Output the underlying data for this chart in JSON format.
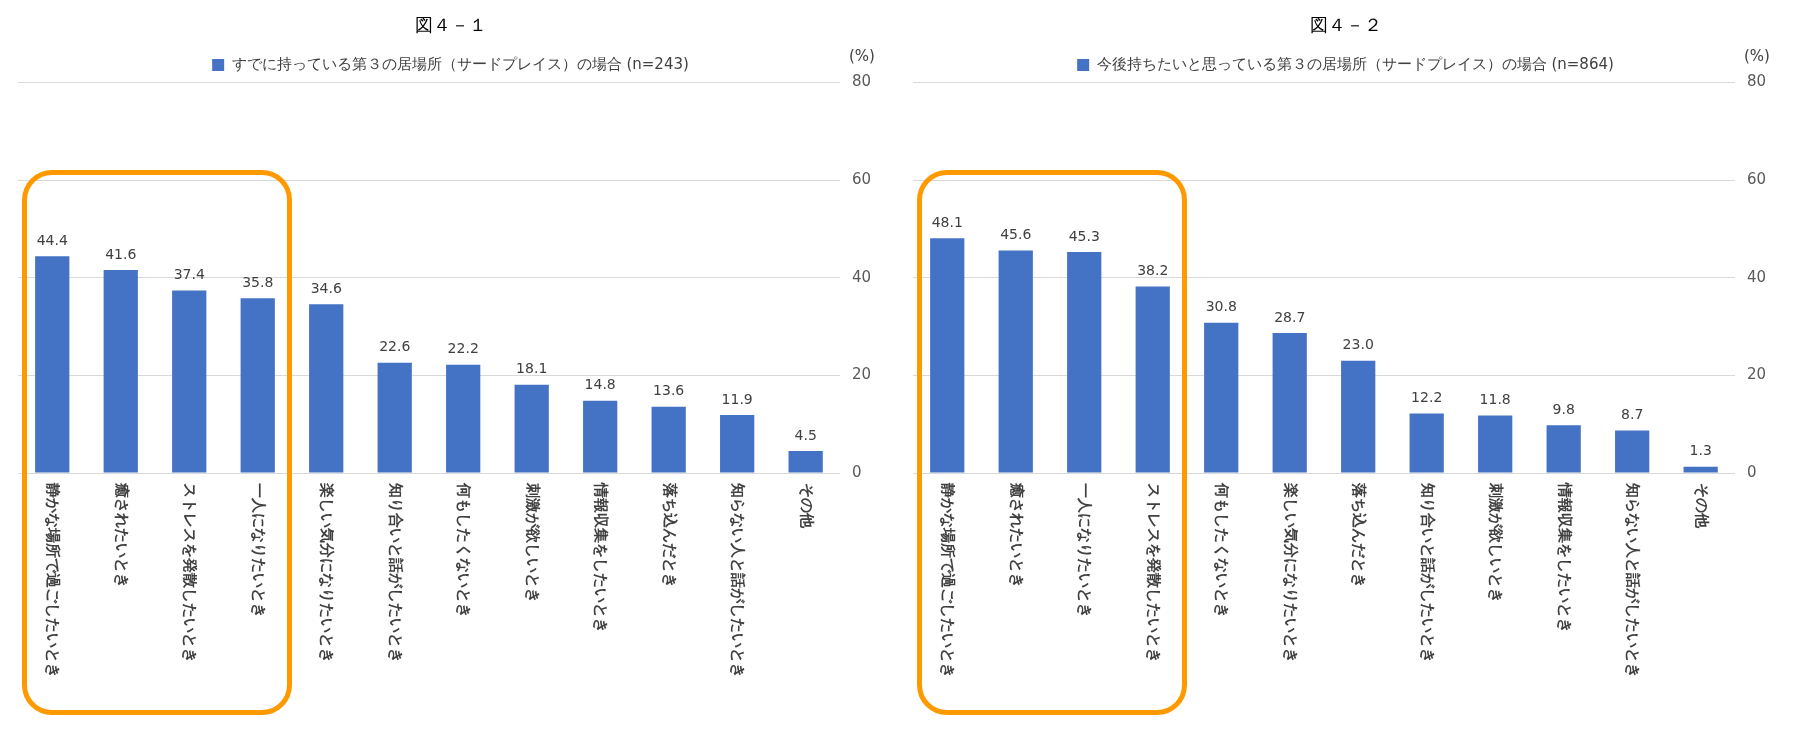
{
  "chart_data": [
    {
      "type": "bar",
      "title": "図４－１",
      "ylabel": "(%)",
      "categories": [
        "静かな場所で過ごしたいとき",
        "癒されたいとき",
        "ストレスを発散したいとき",
        "一人になりたいとき",
        "楽しい気分になりたいとき",
        "知り合いと話がしたいとき",
        "何もしたくないとき",
        "刺激が欲しいとき",
        "情報収集をしたいとき",
        "落ち込んだとき",
        "知らない人と話がしたいとき",
        "その他"
      ],
      "series": [
        {
          "name": "すでに持っている第３の居場所（サードプレイス）の場合 (n=243)",
          "color": "#4472c4",
          "values": [
            44.4,
            41.6,
            37.4,
            35.8,
            34.6,
            22.6,
            22.2,
            18.1,
            14.8,
            13.6,
            11.9,
            4.5
          ],
          "value_labels": [
            "44.4",
            "41.6",
            "37.4",
            "35.8",
            "34.6",
            "22.6",
            "22.2",
            "18.1",
            "14.8",
            "13.6",
            "11.9",
            "4.5"
          ]
        }
      ],
      "ylim": [
        0,
        80
      ],
      "yticks": [
        0,
        20,
        40,
        60,
        80
      ],
      "grid": "y",
      "legend": "top"
    },
    {
      "type": "bar",
      "title": "図４－２",
      "ylabel": "(%)",
      "categories": [
        "静かな場所で過ごしたいとき",
        "癒されたいとき",
        "一人になりたいとき",
        "ストレスを発散したいとき",
        "何もしたくないとき",
        "楽しい気分になりたいとき",
        "落ち込んだとき",
        "知り合いと話がしたいとき",
        "刺激が欲しいとき",
        "情報収集をしたいとき",
        "知らない人と話がしたいとき",
        "その他"
      ],
      "series": [
        {
          "name": "今後持ちたいと思っている第３の居場所（サードプレイス）の場合 (n=864)",
          "color": "#4472c4",
          "values": [
            48.1,
            45.6,
            45.3,
            38.2,
            30.8,
            28.7,
            23.0,
            12.2,
            11.8,
            9.8,
            8.7,
            1.3
          ],
          "value_labels": [
            "48.1",
            "45.6",
            "45.3",
            "38.2",
            "30.8",
            "28.7",
            "23.0",
            "12.2",
            "11.8",
            "9.8",
            "8.7",
            "1.3"
          ]
        }
      ],
      "ylim": [
        0,
        80
      ],
      "yticks": [
        0,
        20,
        40,
        60,
        80
      ],
      "grid": "y",
      "legend": "top"
    }
  ]
}
